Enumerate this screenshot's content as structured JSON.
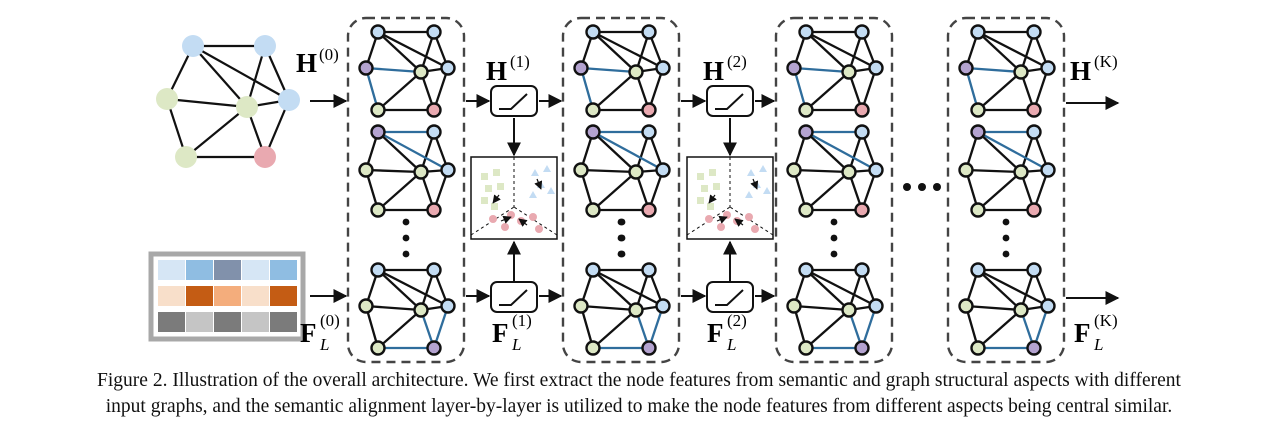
{
  "labels": {
    "h0_main": "H",
    "h0_sup": "(0)",
    "h1_main": "H",
    "h1_sup": "(1)",
    "h2_main": "H",
    "h2_sup": "(2)",
    "hk_main": "H",
    "hk_sup": "(K)",
    "f0_main": "F",
    "f0_sup": "(0)",
    "f0_sub": "L",
    "f1_main": "F",
    "f1_sup": "(1)",
    "f1_sub": "L",
    "f2_main": "F",
    "f2_sup": "(2)",
    "f2_sub": "L",
    "fk_main": "F",
    "fk_sup": "(K)",
    "fk_sub": "L"
  },
  "colors": {
    "node_blue": "#c3dcf3",
    "node_green": "#dde8c5",
    "node_purple": "#b4a3d0",
    "node_pink": "#e9a9b0",
    "edge_blue": "#2f6d9c",
    "box_border": "#444444",
    "matrix_border": "#a8a8a8",
    "matrix_rows": [
      [
        "#d6e6f5",
        "#8fbde2",
        "#8191ab",
        "#d6e6f5",
        "#8fbde2"
      ],
      [
        "#f8dfca",
        "#c45c14",
        "#f4ad7c",
        "#f8dfca",
        "#c45c14"
      ],
      [
        "#7b7b7b",
        "#c5c5c5",
        "#7b7b7b",
        "#c5c5c5",
        "#7b7b7b"
      ]
    ]
  },
  "caption": {
    "line1": "Figure 2. Illustration of the overall architecture. We first extract the node features from semantic and graph structural aspects with different",
    "line2": "input graphs, and the semantic alignment layer-by-layer is utilized to make the node features from different aspects being central similar."
  }
}
